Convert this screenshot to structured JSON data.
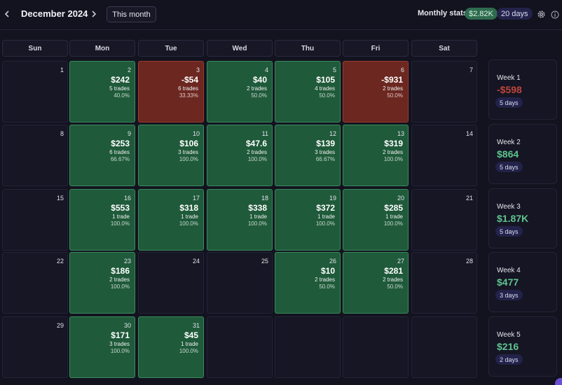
{
  "header": {
    "prev_icon": "chevron-left-icon",
    "next_icon": "chevron-right-icon",
    "month_title": "December 2024",
    "this_month_label": "This month",
    "stats_label": "Monthly stats:",
    "stats_pnl": "$2.82K",
    "stats_days": "20 days",
    "settings_icon": "gear-icon",
    "info_icon": "info-icon"
  },
  "weekdays": [
    "Sun",
    "Mon",
    "Tue",
    "Wed",
    "Thu",
    "Fri",
    "Sat"
  ],
  "colors": {
    "profit": "#1f5a3a",
    "loss": "#6b2720",
    "profit_text": "#5ec48f",
    "loss_text": "#c0463b"
  },
  "weeks": [
    {
      "days": [
        {
          "date": "1"
        },
        {
          "date": "2",
          "pnl": "$242",
          "trades": "5 trades",
          "rate": "40.0%",
          "status": "green"
        },
        {
          "date": "3",
          "pnl": "-$54",
          "trades": "6 trades",
          "rate": "33.33%",
          "status": "red"
        },
        {
          "date": "4",
          "pnl": "$40",
          "trades": "2 trades",
          "rate": "50.0%",
          "status": "green"
        },
        {
          "date": "5",
          "pnl": "$105",
          "trades": "4 trades",
          "rate": "50.0%",
          "status": "green"
        },
        {
          "date": "6",
          "pnl": "-$931",
          "trades": "2 trades",
          "rate": "50.0%",
          "status": "red"
        },
        {
          "date": "7"
        }
      ],
      "summary": {
        "label": "Week 1",
        "value": "-$598",
        "sign": "neg",
        "days": "5 days"
      }
    },
    {
      "days": [
        {
          "date": "8"
        },
        {
          "date": "9",
          "pnl": "$253",
          "trades": "6 trades",
          "rate": "66.67%",
          "status": "green"
        },
        {
          "date": "10",
          "pnl": "$106",
          "trades": "3 trades",
          "rate": "100.0%",
          "status": "green"
        },
        {
          "date": "11",
          "pnl": "$47.6",
          "trades": "2 trades",
          "rate": "100.0%",
          "status": "green"
        },
        {
          "date": "12",
          "pnl": "$139",
          "trades": "3 trades",
          "rate": "66.67%",
          "status": "green"
        },
        {
          "date": "13",
          "pnl": "$319",
          "trades": "2 trades",
          "rate": "100.0%",
          "status": "green"
        },
        {
          "date": "14"
        }
      ],
      "summary": {
        "label": "Week 2",
        "value": "$864",
        "sign": "pos",
        "days": "5 days"
      }
    },
    {
      "days": [
        {
          "date": "15"
        },
        {
          "date": "16",
          "pnl": "$553",
          "trades": "1 trade",
          "rate": "100.0%",
          "status": "green"
        },
        {
          "date": "17",
          "pnl": "$318",
          "trades": "1 trade",
          "rate": "100.0%",
          "status": "green"
        },
        {
          "date": "18",
          "pnl": "$338",
          "trades": "1 trade",
          "rate": "100.0%",
          "status": "green"
        },
        {
          "date": "19",
          "pnl": "$372",
          "trades": "1 trade",
          "rate": "100.0%",
          "status": "green"
        },
        {
          "date": "20",
          "pnl": "$285",
          "trades": "1 trade",
          "rate": "100.0%",
          "status": "green"
        },
        {
          "date": "21"
        }
      ],
      "summary": {
        "label": "Week 3",
        "value": "$1.87K",
        "sign": "pos",
        "days": "5 days"
      }
    },
    {
      "days": [
        {
          "date": "22"
        },
        {
          "date": "23",
          "pnl": "$186",
          "trades": "2 trades",
          "rate": "100.0%",
          "status": "green"
        },
        {
          "date": "24"
        },
        {
          "date": "25"
        },
        {
          "date": "26",
          "pnl": "$10",
          "trades": "2 trades",
          "rate": "50.0%",
          "status": "green"
        },
        {
          "date": "27",
          "pnl": "$281",
          "trades": "2 trades",
          "rate": "50.0%",
          "status": "green"
        },
        {
          "date": "28"
        }
      ],
      "summary": {
        "label": "Week 4",
        "value": "$477",
        "sign": "pos",
        "days": "3 days"
      }
    },
    {
      "days": [
        {
          "date": "29"
        },
        {
          "date": "30",
          "pnl": "$171",
          "trades": "3 trades",
          "rate": "100.0%",
          "status": "green"
        },
        {
          "date": "31",
          "pnl": "$45",
          "trades": "1 trade",
          "rate": "100.0%",
          "status": "green"
        },
        {
          "date": ""
        },
        {
          "date": ""
        },
        {
          "date": ""
        },
        {
          "date": ""
        }
      ],
      "summary": {
        "label": "Week 5",
        "value": "$216",
        "sign": "pos",
        "days": "2 days"
      }
    }
  ]
}
